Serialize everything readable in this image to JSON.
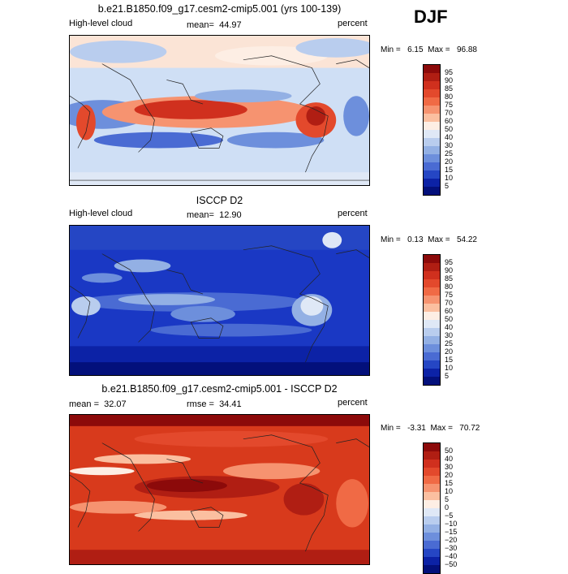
{
  "season": "DJF",
  "panels": [
    {
      "id": "model",
      "title": "b.e21.B1850.f09_g17.cesm2-cmip5.001 (yrs 100-139)",
      "left_label": "High-level cloud",
      "mean_label": "mean=",
      "mean_value": "44.97",
      "units": "percent",
      "min_label": "Min =",
      "min_value": "6.15",
      "max_label": "Max =",
      "max_value": "96.88",
      "colorbar_levels": [
        "95",
        "90",
        "85",
        "80",
        "75",
        "70",
        "60",
        "50",
        "40",
        "30",
        "25",
        "20",
        "15",
        "10",
        "5"
      ],
      "colorbar_colors": [
        "#8c0a0a",
        "#b01e13",
        "#d0301e",
        "#e3492c",
        "#f06a45",
        "#f69370",
        "#fbbfa0",
        "#fdeee4",
        "#dfe8f6",
        "#b9cdee",
        "#93b0e4",
        "#6d8fdc",
        "#4a6bd3",
        "#2546c4",
        "#0c22a6",
        "#03107b"
      ],
      "base_color": "#c9daf3"
    },
    {
      "id": "obs",
      "title": "ISCCP D2",
      "left_label": "High-level cloud",
      "mean_label": "mean=",
      "mean_value": "12.90",
      "units": "percent",
      "min_label": "Min =",
      "min_value": "0.13",
      "max_label": "Max =",
      "max_value": "54.22",
      "colorbar_levels": [
        "95",
        "90",
        "85",
        "80",
        "75",
        "70",
        "60",
        "50",
        "40",
        "30",
        "25",
        "20",
        "15",
        "10",
        "5"
      ],
      "colorbar_colors": [
        "#8c0a0a",
        "#b01e13",
        "#d0301e",
        "#e3492c",
        "#f06a45",
        "#f69370",
        "#fbbfa0",
        "#fdeee4",
        "#dfe8f6",
        "#b9cdee",
        "#93b0e4",
        "#6d8fdc",
        "#4a6bd3",
        "#2546c4",
        "#0c22a6",
        "#03107b"
      ],
      "base_color": "#1533c2"
    },
    {
      "id": "diff",
      "title": "b.e21.B1850.f09_g17.cesm2-cmip5.001 - ISCCP D2",
      "left_label": "mean =",
      "left_value": "32.07",
      "mean_label": "rmse =",
      "mean_value": "34.41",
      "units": "percent",
      "min_label": "Min =",
      "min_value": "-3.31",
      "max_label": "Max =",
      "max_value": "70.72",
      "colorbar_levels": [
        "50",
        "40",
        "30",
        "20",
        "15",
        "10",
        "5",
        "0",
        "−5",
        "−10",
        "−15",
        "−20",
        "−30",
        "−40",
        "−50"
      ],
      "colorbar_colors": [
        "#8c0a0a",
        "#b01e13",
        "#d0301e",
        "#e3492c",
        "#f06a45",
        "#f69370",
        "#fbbfa0",
        "#fdeee4",
        "#dfe8f6",
        "#b9cdee",
        "#93b0e4",
        "#6d8fdc",
        "#4a6bd3",
        "#2546c4",
        "#0c22a6",
        "#03107b"
      ],
      "base_color": "#d83a1c"
    }
  ]
}
